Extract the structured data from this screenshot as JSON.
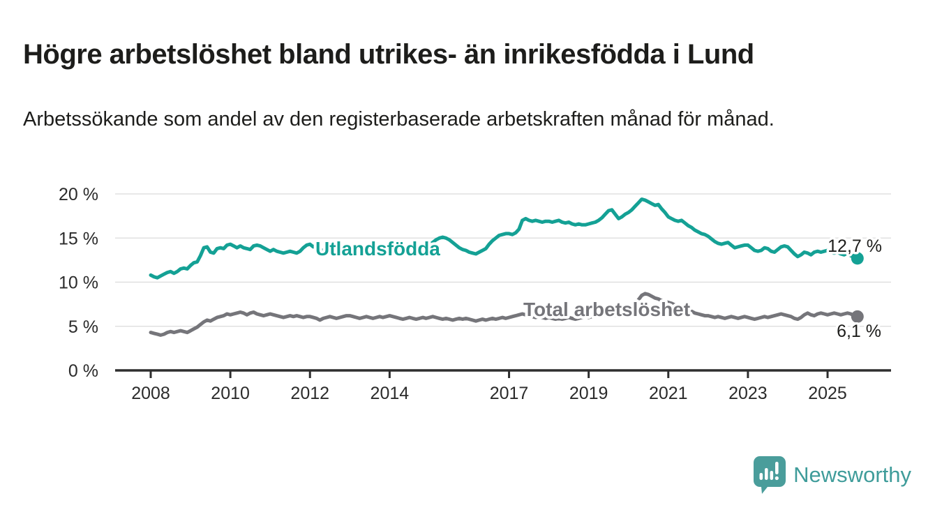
{
  "page": {
    "title": "Högre arbetslöshet bland utrikes- än inrikesfödda i Lund",
    "subtitle": "Arbetssökande som andel av den registerbaserade arbetskraften månad för månad."
  },
  "branding": {
    "logo_text": "Newsworthy",
    "logo_color": "#3f9c9a",
    "logo_icon": "bar-chart-speech-bubble-icon"
  },
  "chart_data": {
    "type": "line",
    "title": "Högre arbetslöshet bland utrikes- än inrikesfödda i Lund",
    "xlabel": "",
    "ylabel": "",
    "x_start_year": 2008,
    "x_step_months": 1,
    "x_end_year": 2025.75,
    "x_ticks": [
      2008,
      2010,
      2012,
      2014,
      2017,
      2019,
      2021,
      2023,
      2025
    ],
    "x_tick_labels": [
      "2008",
      "2010",
      "2012",
      "2014",
      "2017",
      "2019",
      "2021",
      "2023",
      "2025"
    ],
    "y_ticks": [
      0,
      5,
      10,
      15,
      20
    ],
    "y_tick_labels": [
      "0 %",
      "5 %",
      "10 %",
      "15 %",
      "20 %"
    ],
    "ylim": [
      0,
      21.5
    ],
    "grid": "horizontal",
    "legend_position": "inline-labels",
    "axis_color": "#2e2e2e",
    "grid_color": "#e0e0e0",
    "tick_label_color": "#2b2b2b",
    "value_label_color": "#1d1d1b",
    "series": [
      {
        "name": "Utlandsfödda",
        "color": "#14a195",
        "end_value": 12.7,
        "end_label": "12,7 %",
        "values": [
          10.8,
          10.6,
          10.5,
          10.7,
          10.9,
          11.1,
          11.2,
          11.0,
          11.2,
          11.5,
          11.6,
          11.5,
          11.9,
          12.2,
          12.3,
          13.0,
          13.9,
          14.0,
          13.4,
          13.3,
          13.8,
          13.9,
          13.8,
          14.2,
          14.3,
          14.1,
          13.9,
          14.1,
          13.9,
          13.8,
          13.7,
          14.1,
          14.2,
          14.1,
          13.9,
          13.7,
          13.5,
          13.7,
          13.5,
          13.4,
          13.3,
          13.4,
          13.5,
          13.4,
          13.3,
          13.5,
          13.9,
          14.2,
          14.3,
          14.0,
          14.2,
          13.7,
          13.6,
          13.5,
          13.6,
          13.7,
          13.6,
          13.5,
          13.6,
          13.7,
          13.5,
          13.4,
          13.5,
          13.6,
          13.5,
          13.4,
          13.3,
          13.4,
          13.5,
          13.6,
          13.5,
          13.6,
          13.7,
          13.8,
          13.7,
          13.8,
          13.9,
          14.0,
          13.9,
          14.0,
          14.1,
          14.0,
          14.1,
          14.2,
          14.3,
          14.5,
          14.8,
          15.0,
          15.1,
          15.0,
          14.8,
          14.5,
          14.2,
          13.9,
          13.7,
          13.6,
          13.4,
          13.3,
          13.2,
          13.4,
          13.6,
          13.8,
          14.3,
          14.7,
          15.0,
          15.3,
          15.4,
          15.5,
          15.5,
          15.4,
          15.6,
          16.0,
          17.0,
          17.2,
          17.0,
          16.9,
          17.0,
          16.9,
          16.8,
          16.9,
          16.9,
          16.8,
          16.9,
          17.0,
          16.8,
          16.7,
          16.8,
          16.6,
          16.5,
          16.6,
          16.5,
          16.5,
          16.6,
          16.7,
          16.8,
          17.0,
          17.3,
          17.7,
          18.1,
          18.2,
          17.7,
          17.2,
          17.4,
          17.7,
          17.9,
          18.2,
          18.6,
          19.0,
          19.4,
          19.3,
          19.1,
          18.9,
          18.7,
          18.8,
          18.3,
          17.9,
          17.4,
          17.2,
          17.0,
          16.9,
          17.0,
          16.7,
          16.4,
          16.2,
          15.9,
          15.7,
          15.5,
          15.4,
          15.2,
          14.9,
          14.6,
          14.4,
          14.3,
          14.4,
          14.5,
          14.2,
          13.9,
          14.0,
          14.1,
          14.2,
          14.2,
          13.9,
          13.6,
          13.5,
          13.6,
          13.9,
          13.8,
          13.5,
          13.4,
          13.7,
          14.0,
          14.1,
          14.0,
          13.6,
          13.2,
          12.9,
          13.1,
          13.4,
          13.3,
          13.1,
          13.4,
          13.5,
          13.4,
          13.5,
          13.6,
          13.4,
          13.3,
          13.4,
          13.2,
          13.1,
          13.3,
          13.0,
          12.8,
          12.7
        ]
      },
      {
        "name": "Total arbetslöshet",
        "color": "#75757a",
        "end_value": 6.1,
        "end_label": "6,1 %",
        "values": [
          4.3,
          4.2,
          4.1,
          4.0,
          4.1,
          4.3,
          4.4,
          4.3,
          4.4,
          4.5,
          4.4,
          4.3,
          4.5,
          4.7,
          4.9,
          5.2,
          5.5,
          5.7,
          5.6,
          5.8,
          6.0,
          6.1,
          6.2,
          6.4,
          6.3,
          6.4,
          6.5,
          6.6,
          6.5,
          6.3,
          6.5,
          6.6,
          6.4,
          6.3,
          6.2,
          6.3,
          6.4,
          6.3,
          6.2,
          6.1,
          6.0,
          6.1,
          6.2,
          6.1,
          6.2,
          6.1,
          6.0,
          6.1,
          6.1,
          6.0,
          5.9,
          5.7,
          5.9,
          6.0,
          6.1,
          6.0,
          5.9,
          6.0,
          6.1,
          6.2,
          6.2,
          6.1,
          6.0,
          5.9,
          6.0,
          6.1,
          6.0,
          5.9,
          6.0,
          6.1,
          6.0,
          6.1,
          6.2,
          6.1,
          6.0,
          5.9,
          5.8,
          5.9,
          6.0,
          5.9,
          5.8,
          5.9,
          6.0,
          5.9,
          6.0,
          6.1,
          6.0,
          5.9,
          5.8,
          5.9,
          5.8,
          5.7,
          5.8,
          5.9,
          5.8,
          5.9,
          5.8,
          5.7,
          5.6,
          5.7,
          5.8,
          5.7,
          5.8,
          5.9,
          5.8,
          5.9,
          6.0,
          5.9,
          6.0,
          6.1,
          6.2,
          6.3,
          6.4,
          6.3,
          6.2,
          6.1,
          6.0,
          6.1,
          6.0,
          5.9,
          6.0,
          5.9,
          5.8,
          5.9,
          5.8,
          5.9,
          6.0,
          5.9,
          5.8,
          5.9,
          6.0,
          6.1,
          6.0,
          6.1,
          6.2,
          6.1,
          6.2,
          6.3,
          6.4,
          6.3,
          6.2,
          6.3,
          6.4,
          6.5,
          6.6,
          6.7,
          7.2,
          8.0,
          8.5,
          8.7,
          8.6,
          8.4,
          8.2,
          8.1,
          7.9,
          7.8,
          7.7,
          7.6,
          7.4,
          7.2,
          7.0,
          6.9,
          6.8,
          6.7,
          6.5,
          6.4,
          6.3,
          6.2,
          6.2,
          6.1,
          6.0,
          6.1,
          6.0,
          5.9,
          6.0,
          6.1,
          6.0,
          5.9,
          6.0,
          6.1,
          6.0,
          5.9,
          5.8,
          5.9,
          6.0,
          6.1,
          6.0,
          6.1,
          6.2,
          6.3,
          6.4,
          6.3,
          6.2,
          6.1,
          5.9,
          5.8,
          6.0,
          6.3,
          6.5,
          6.3,
          6.2,
          6.4,
          6.5,
          6.4,
          6.3,
          6.4,
          6.5,
          6.4,
          6.3,
          6.4,
          6.5,
          6.4,
          6.2,
          6.1
        ]
      }
    ]
  }
}
